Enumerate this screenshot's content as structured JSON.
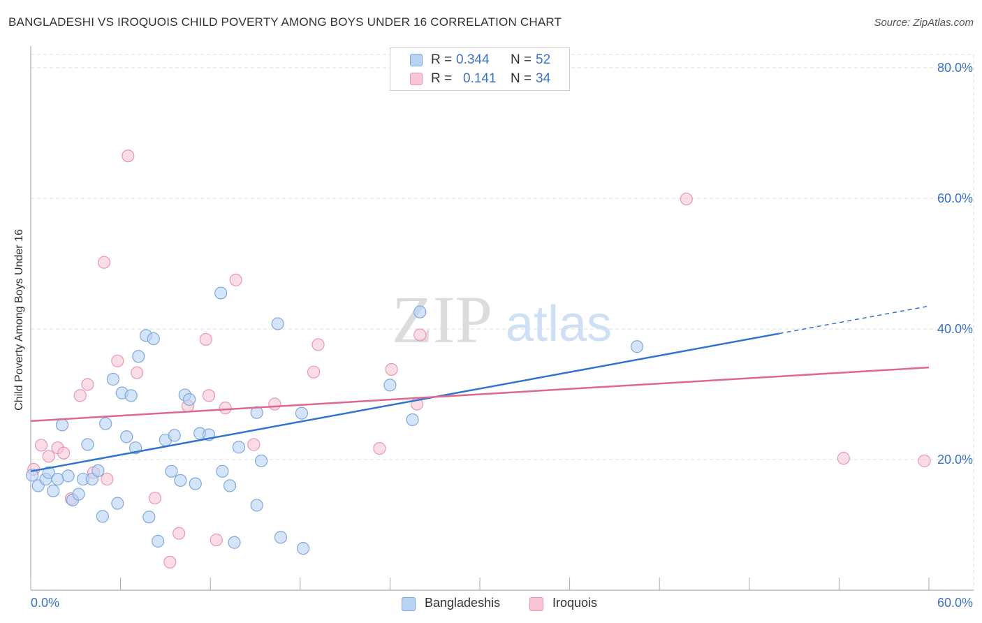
{
  "title": "BANGLADESHI VS IROQUOIS CHILD POVERTY AMONG BOYS UNDER 16 CORRELATION CHART",
  "source": "Source: ZipAtlas.com",
  "watermark": {
    "zip": "ZIP",
    "atlas": "atlas"
  },
  "legend": {
    "r_label": "R =",
    "n_label": "N =",
    "rows": [
      {
        "r": "0.344",
        "n": "52"
      },
      {
        "r": "0.141",
        "n": "34"
      }
    ]
  },
  "bottom_legend": [
    "Bangladeshis",
    "Iroquois"
  ],
  "colors": {
    "blue_fill": "#b9d3f5",
    "blue_stroke": "#7fa8de",
    "blue_line": "#2f73d0",
    "pink_fill": "#f8c6d5",
    "pink_stroke": "#eb96b1",
    "pink_line": "#e06790",
    "axis_text": "#3a72c4",
    "grid": "#dddddd"
  },
  "chart_data": {
    "type": "scatter",
    "title": "BANGLADESHI VS IROQUOIS CHILD POVERTY AMONG BOYS UNDER 16 CORRELATION CHART",
    "xlabel": "",
    "ylabel": "Child Poverty Among Boys Under 16",
    "xlim": [
      0,
      60
    ],
    "ylim": [
      0,
      85
    ],
    "x_tick_labels": [
      "0.0%",
      "60.0%"
    ],
    "y_ticks": [
      20,
      40,
      60,
      80
    ],
    "y_tick_labels": [
      "20.0%",
      "40.0%",
      "60.0%",
      "80.0%"
    ],
    "grid": true,
    "legend_position": "top-center",
    "series": [
      {
        "name": "Bangladeshis",
        "r": 0.344,
        "n": 52,
        "trend": {
          "x0": 0,
          "y0": 18.2,
          "x1": 50,
          "y1": 39.3,
          "dash_to_x": 60,
          "dash_to_y": 43.5
        },
        "points": [
          [
            0.1,
            17.6
          ],
          [
            0.5,
            16.0
          ],
          [
            1.0,
            17.0
          ],
          [
            1.2,
            18.0
          ],
          [
            1.5,
            15.2
          ],
          [
            1.8,
            17.0
          ],
          [
            2.1,
            25.3
          ],
          [
            2.5,
            17.5
          ],
          [
            2.8,
            13.8
          ],
          [
            3.2,
            14.7
          ],
          [
            3.5,
            17.0
          ],
          [
            3.8,
            22.3
          ],
          [
            4.1,
            17.0
          ],
          [
            4.5,
            18.3
          ],
          [
            4.8,
            11.3
          ],
          [
            5.0,
            25.5
          ],
          [
            5.5,
            32.3
          ],
          [
            5.8,
            13.3
          ],
          [
            6.1,
            30.2
          ],
          [
            6.4,
            23.5
          ],
          [
            6.7,
            29.8
          ],
          [
            7.0,
            21.8
          ],
          [
            7.2,
            35.8
          ],
          [
            7.7,
            39.0
          ],
          [
            7.9,
            11.2
          ],
          [
            8.2,
            38.5
          ],
          [
            8.5,
            7.5
          ],
          [
            9.0,
            23.0
          ],
          [
            9.4,
            18.2
          ],
          [
            9.6,
            23.7
          ],
          [
            10.0,
            16.8
          ],
          [
            10.3,
            29.9
          ],
          [
            10.6,
            29.2
          ],
          [
            11.0,
            16.3
          ],
          [
            11.3,
            24.0
          ],
          [
            11.9,
            23.8
          ],
          [
            12.7,
            45.5
          ],
          [
            12.8,
            18.2
          ],
          [
            13.3,
            16.0
          ],
          [
            13.6,
            7.3
          ],
          [
            13.9,
            21.9
          ],
          [
            15.1,
            13.0
          ],
          [
            15.1,
            27.2
          ],
          [
            15.4,
            19.8
          ],
          [
            16.5,
            40.8
          ],
          [
            16.7,
            8.1
          ],
          [
            18.1,
            27.1
          ],
          [
            18.2,
            6.4
          ],
          [
            24.0,
            31.4
          ],
          [
            25.5,
            26.1
          ],
          [
            26.0,
            42.6
          ],
          [
            40.5,
            37.3
          ]
        ]
      },
      {
        "name": "Iroquois",
        "r": 0.141,
        "n": 34,
        "trend": {
          "x0": 0,
          "y0": 25.9,
          "x1": 60,
          "y1": 34.1
        },
        "points": [
          [
            0.2,
            18.5
          ],
          [
            0.7,
            22.2
          ],
          [
            1.2,
            20.5
          ],
          [
            1.8,
            21.8
          ],
          [
            2.2,
            21.0
          ],
          [
            2.7,
            14.0
          ],
          [
            3.3,
            29.8
          ],
          [
            3.8,
            31.5
          ],
          [
            4.2,
            18.0
          ],
          [
            4.9,
            50.2
          ],
          [
            5.1,
            17.0
          ],
          [
            5.8,
            35.1
          ],
          [
            6.5,
            66.5
          ],
          [
            7.1,
            33.3
          ],
          [
            8.3,
            14.1
          ],
          [
            9.3,
            4.3
          ],
          [
            9.9,
            8.7
          ],
          [
            10.5,
            28.2
          ],
          [
            11.7,
            38.4
          ],
          [
            11.9,
            29.8
          ],
          [
            12.4,
            7.7
          ],
          [
            13.0,
            27.9
          ],
          [
            13.7,
            47.5
          ],
          [
            14.9,
            22.3
          ],
          [
            16.3,
            28.5
          ],
          [
            18.9,
            33.4
          ],
          [
            19.2,
            37.6
          ],
          [
            23.3,
            21.7
          ],
          [
            24.1,
            33.8
          ],
          [
            25.8,
            28.5
          ],
          [
            26.0,
            39.1
          ],
          [
            43.8,
            59.9
          ],
          [
            54.3,
            20.2
          ],
          [
            59.7,
            19.8
          ]
        ]
      }
    ]
  }
}
